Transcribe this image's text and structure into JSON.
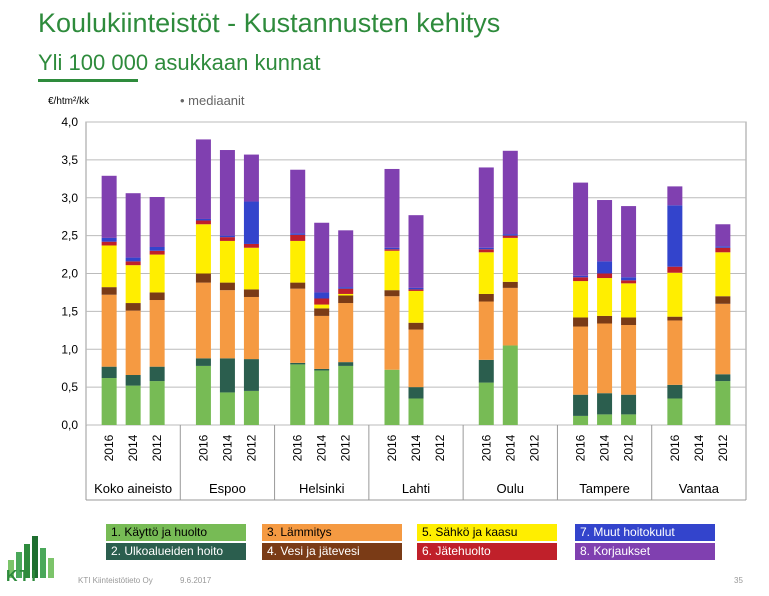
{
  "header": {
    "title": "Koulukiinteistöt - Kustannusten kehitys",
    "subtitle": "Yli 100 000 asukkaan kunnat",
    "note": "• mediaanit"
  },
  "footer": {
    "company": "KTI Kiinteistötieto Oy",
    "date": "9.6.2017",
    "page": "35",
    "logo_text": "KTI"
  },
  "legend": [
    {
      "label": "1. Käyttö ja huolto",
      "color": "#77bb55",
      "text_color": "#000000"
    },
    {
      "label": "2. Ulkoalueiden hoito",
      "color": "#2b5e4e",
      "text_color": "#ffffff"
    },
    {
      "label": "3. Lämmitys",
      "color": "#f59a42",
      "text_color": "#000000"
    },
    {
      "label": "4. Vesi ja jätevesi",
      "color": "#7a3b16",
      "text_color": "#ffffff"
    },
    {
      "label": "5. Sähkö ja kaasu",
      "color": "#ffee00",
      "text_color": "#000000"
    },
    {
      "label": "6. Jätehuolto",
      "color": "#c0202a",
      "text_color": "#ffffff"
    },
    {
      "label": "7. Muut hoitokulut",
      "color": "#3344cc",
      "text_color": "#ffffff"
    },
    {
      "label": "8. Korjaukset",
      "color": "#8040b0",
      "text_color": "#ffffff"
    }
  ],
  "chart_data": {
    "type": "bar",
    "stacked": true,
    "ylabel": "€/htm²/kk",
    "ylim": [
      0,
      4.0
    ],
    "yticks": [
      "0,0",
      "0,5",
      "1,0",
      "1,5",
      "2,0",
      "2,5",
      "3,0",
      "3,5",
      "4,0"
    ],
    "grid": true,
    "series_names": [
      "1. Käyttö ja huolto",
      "2. Ulkoalueiden hoito",
      "3. Lämmitys",
      "4. Vesi ja jätevesi",
      "5. Sähkö ja kaasu",
      "6. Jätehuolto",
      "7. Muut hoitokulut",
      "8. Korjaukset"
    ],
    "groups": [
      {
        "name": "Koko aineisto",
        "bars": [
          {
            "year": "2016",
            "values": [
              0.62,
              0.15,
              0.95,
              0.1,
              0.55,
              0.05,
              0.05,
              0.82
            ]
          },
          {
            "year": "2014",
            "values": [
              0.52,
              0.14,
              0.85,
              0.1,
              0.5,
              0.05,
              0.05,
              0.85
            ]
          },
          {
            "year": "2012",
            "values": [
              0.58,
              0.19,
              0.88,
              0.1,
              0.5,
              0.05,
              0.05,
              0.66
            ]
          }
        ]
      },
      {
        "name": "Espoo",
        "bars": [
          {
            "year": "2016",
            "values": [
              0.78,
              0.1,
              1.0,
              0.12,
              0.65,
              0.05,
              0.02,
              1.05
            ]
          },
          {
            "year": "2014",
            "values": [
              0.43,
              0.45,
              0.9,
              0.1,
              0.55,
              0.05,
              0.02,
              1.13
            ]
          },
          {
            "year": "2012",
            "values": [
              0.45,
              0.42,
              0.82,
              0.1,
              0.55,
              0.05,
              0.56,
              0.62
            ]
          }
        ]
      },
      {
        "name": "Helsinki",
        "bars": [
          {
            "year": "2016",
            "values": [
              0.8,
              0.02,
              0.98,
              0.08,
              0.55,
              0.08,
              0.02,
              0.84
            ]
          },
          {
            "year": "2014",
            "values": [
              0.72,
              0.02,
              0.7,
              0.1,
              0.05,
              0.08,
              0.08,
              0.92
            ]
          },
          {
            "year": "2012",
            "values": [
              0.78,
              0.05,
              0.78,
              0.1,
              0.02,
              0.07,
              0.02,
              0.75
            ]
          }
        ]
      },
      {
        "name": "Lahti",
        "bars": [
          {
            "year": "2016",
            "values": [
              0.73,
              0.0,
              0.97,
              0.08,
              0.52,
              0.02,
              0.02,
              1.04
            ]
          },
          {
            "year": "2014",
            "values": [
              0.35,
              0.15,
              0.76,
              0.09,
              0.42,
              0.02,
              0.02,
              0.96
            ]
          },
          {
            "year": "2012",
            "values": [
              0,
              0,
              0,
              0,
              0,
              0,
              0,
              0
            ]
          }
        ]
      },
      {
        "name": "Oulu",
        "bars": [
          {
            "year": "2016",
            "values": [
              0.56,
              0.3,
              0.77,
              0.1,
              0.55,
              0.04,
              0.02,
              1.06
            ]
          },
          {
            "year": "2014",
            "values": [
              1.05,
              0.0,
              0.76,
              0.08,
              0.58,
              0.03,
              0.02,
              1.1
            ]
          },
          {
            "year": "2012",
            "values": [
              0,
              0,
              0,
              0,
              0,
              0,
              0,
              0
            ]
          }
        ]
      },
      {
        "name": "Tampere",
        "bars": [
          {
            "year": "2016",
            "values": [
              0.12,
              0.28,
              0.9,
              0.12,
              0.48,
              0.05,
              0.02,
              1.23
            ]
          },
          {
            "year": "2014",
            "values": [
              0.14,
              0.28,
              0.92,
              0.1,
              0.5,
              0.06,
              0.16,
              0.81
            ]
          },
          {
            "year": "2012",
            "values": [
              0.14,
              0.26,
              0.92,
              0.1,
              0.45,
              0.04,
              0.04,
              0.94
            ]
          }
        ]
      },
      {
        "name": "Vantaa",
        "bars": [
          {
            "year": "2016",
            "values": [
              0.35,
              0.18,
              0.85,
              0.05,
              0.58,
              0.08,
              0.81,
              0.25
            ]
          },
          {
            "year": "2014",
            "values": [
              0,
              0,
              0,
              0,
              0,
              0,
              0,
              0
            ]
          },
          {
            "year": "2012",
            "values": [
              0.58,
              0.09,
              0.93,
              0.1,
              0.58,
              0.06,
              0.02,
              0.29
            ]
          }
        ]
      }
    ]
  }
}
